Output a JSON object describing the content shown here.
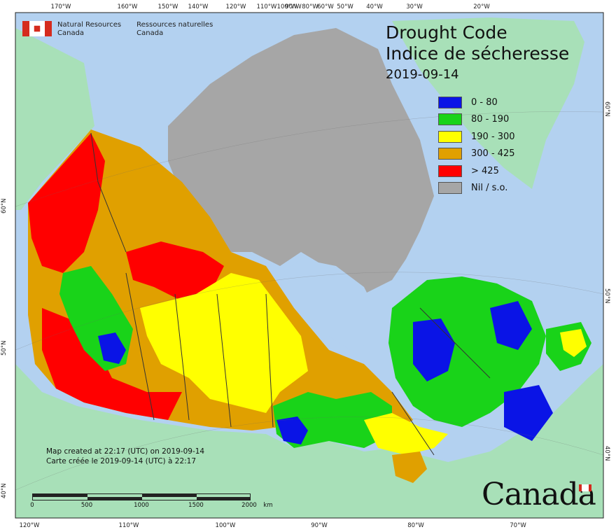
{
  "publisher": {
    "en_line1": "Natural Resources",
    "en_line2": "Canada",
    "fr_line1": "Ressources naturelles",
    "fr_line2": "Canada"
  },
  "title": {
    "en": "Drought Code",
    "fr": "Indice de sécheresse",
    "date": "2019-09-14"
  },
  "legend": [
    {
      "label": "0 - 80",
      "color": "#0a14e6"
    },
    {
      "label": "80 - 190",
      "color": "#19d319"
    },
    {
      "label": "190 - 300",
      "color": "#ffff00"
    },
    {
      "label": "300 - 425",
      "color": "#e0a000"
    },
    {
      "label": "> 425",
      "color": "#ff0000"
    },
    {
      "label": "Nil / s.o.",
      "color": "#a6a6a6"
    }
  ],
  "credit": {
    "en": "Map created at 22:17 (UTC) on 2019-09-14",
    "fr": "Carte créée le 2019-09-14 (UTC) à 22:17"
  },
  "scale": {
    "labels": [
      "0",
      "500",
      "1000",
      "1500",
      "2000"
    ],
    "unit": "km"
  },
  "wordmark": "Canada",
  "graticule": {
    "top": [
      "170°W",
      "160°W",
      "150°W",
      "140°W",
      "120°W",
      "110°W",
      "100°W",
      "90°W",
      "80°W",
      "60°W",
      "50°W",
      "40°W",
      "30°W",
      "20°W"
    ],
    "bottom": [
      "120°W",
      "110°W",
      "100°W",
      "90°W",
      "80°W",
      "70°W"
    ],
    "left": [
      "60°N",
      "50°N",
      "40°N"
    ],
    "right": [
      "60°N",
      "50°N",
      "40°N"
    ]
  },
  "colors": {
    "water": "#b3d1f0",
    "land_outside": "#a8e0b8",
    "boundary": "#333333"
  }
}
